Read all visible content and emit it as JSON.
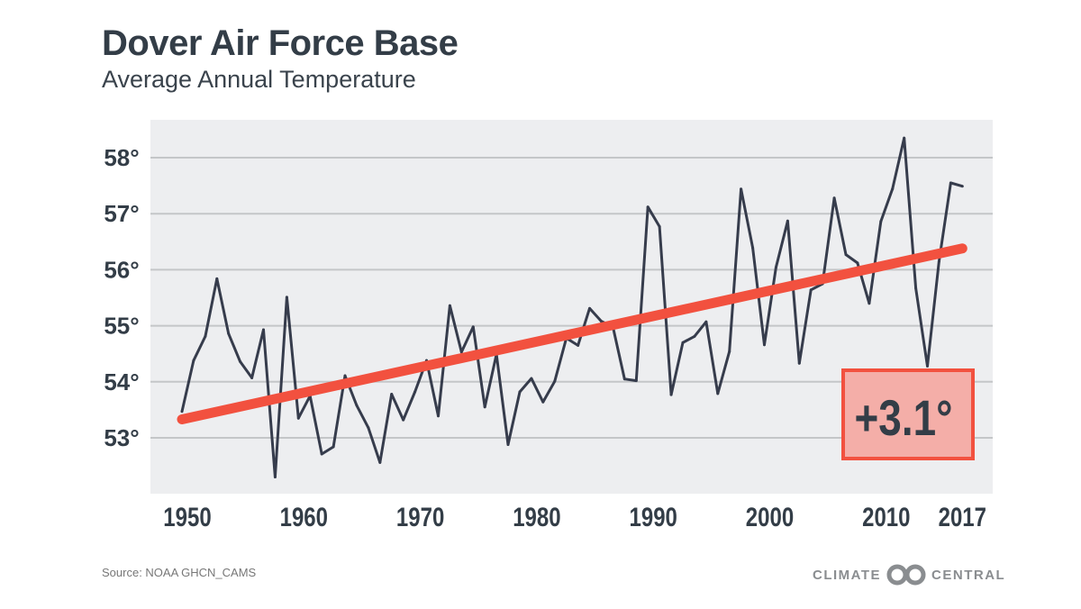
{
  "title": "Dover Air Force Base",
  "subtitle": "Average Annual Temperature",
  "source": "Source: NOAA GHCN_CAMS",
  "logo": {
    "left": "CLIMATE",
    "right": "CENTRAL"
  },
  "colors": {
    "line": "#363c4c",
    "trend": "#f2513f",
    "plot_bg": "#edeef0",
    "grid": "#c4c6c8",
    "annotation_fill": "#f4aea8"
  },
  "chart_data": {
    "type": "line",
    "title": "Dover Air Force Base",
    "subtitle": "Average Annual Temperature",
    "xlabel": "",
    "ylabel": "",
    "xlim": [
      1947,
      2020
    ],
    "ylim": [
      52.3,
      58.6
    ],
    "grid": true,
    "y_ticks": [
      58,
      57,
      56,
      55,
      54,
      53
    ],
    "y_tick_labels": [
      "58°",
      "57°",
      "56°",
      "55°",
      "54°",
      "53°"
    ],
    "x_ticks": [
      1950,
      1960,
      1970,
      1980,
      1990,
      2000,
      2010,
      2017
    ],
    "x_tick_labels": [
      "1950",
      "1960",
      "1970",
      "1980",
      "1990",
      "2000",
      "2010",
      "2017"
    ],
    "x": [
      1950,
      1951,
      1952,
      1953,
      1954,
      1955,
      1956,
      1957,
      1958,
      1959,
      1960,
      1961,
      1962,
      1963,
      1964,
      1965,
      1966,
      1967,
      1968,
      1969,
      1970,
      1971,
      1972,
      1973,
      1974,
      1975,
      1976,
      1977,
      1978,
      1979,
      1980,
      1981,
      1982,
      1983,
      1984,
      1985,
      1986,
      1987,
      1988,
      1989,
      1990,
      1991,
      1992,
      1993,
      1994,
      1995,
      1996,
      1997,
      1998,
      1999,
      2000,
      2001,
      2002,
      2003,
      2004,
      2005,
      2006,
      2007,
      2008,
      2009,
      2010,
      2011,
      2012,
      2013,
      2014,
      2015,
      2016,
      2017
    ],
    "values": [
      53.47,
      54.38,
      54.81,
      55.84,
      54.86,
      54.36,
      54.07,
      54.93,
      52.3,
      55.51,
      53.35,
      53.75,
      52.71,
      52.84,
      54.11,
      53.58,
      53.18,
      52.56,
      53.78,
      53.32,
      53.82,
      54.38,
      53.39,
      55.36,
      54.53,
      54.98,
      53.55,
      54.49,
      52.88,
      53.82,
      54.06,
      53.64,
      54.01,
      54.78,
      54.65,
      55.31,
      55.08,
      54.98,
      54.05,
      54.02,
      57.12,
      56.77,
      53.77,
      54.7,
      54.81,
      55.07,
      53.79,
      54.54,
      57.44,
      56.39,
      54.66,
      56.04,
      56.87,
      54.33,
      55.64,
      55.75,
      57.28,
      56.27,
      56.12,
      55.4,
      56.86,
      57.44,
      58.35,
      55.67,
      54.28,
      56.15,
      57.55,
      57.49
    ],
    "trend": {
      "x": [
        1950,
        2017
      ],
      "values": [
        53.33,
        56.38
      ]
    },
    "annotation": "+3.1°"
  }
}
